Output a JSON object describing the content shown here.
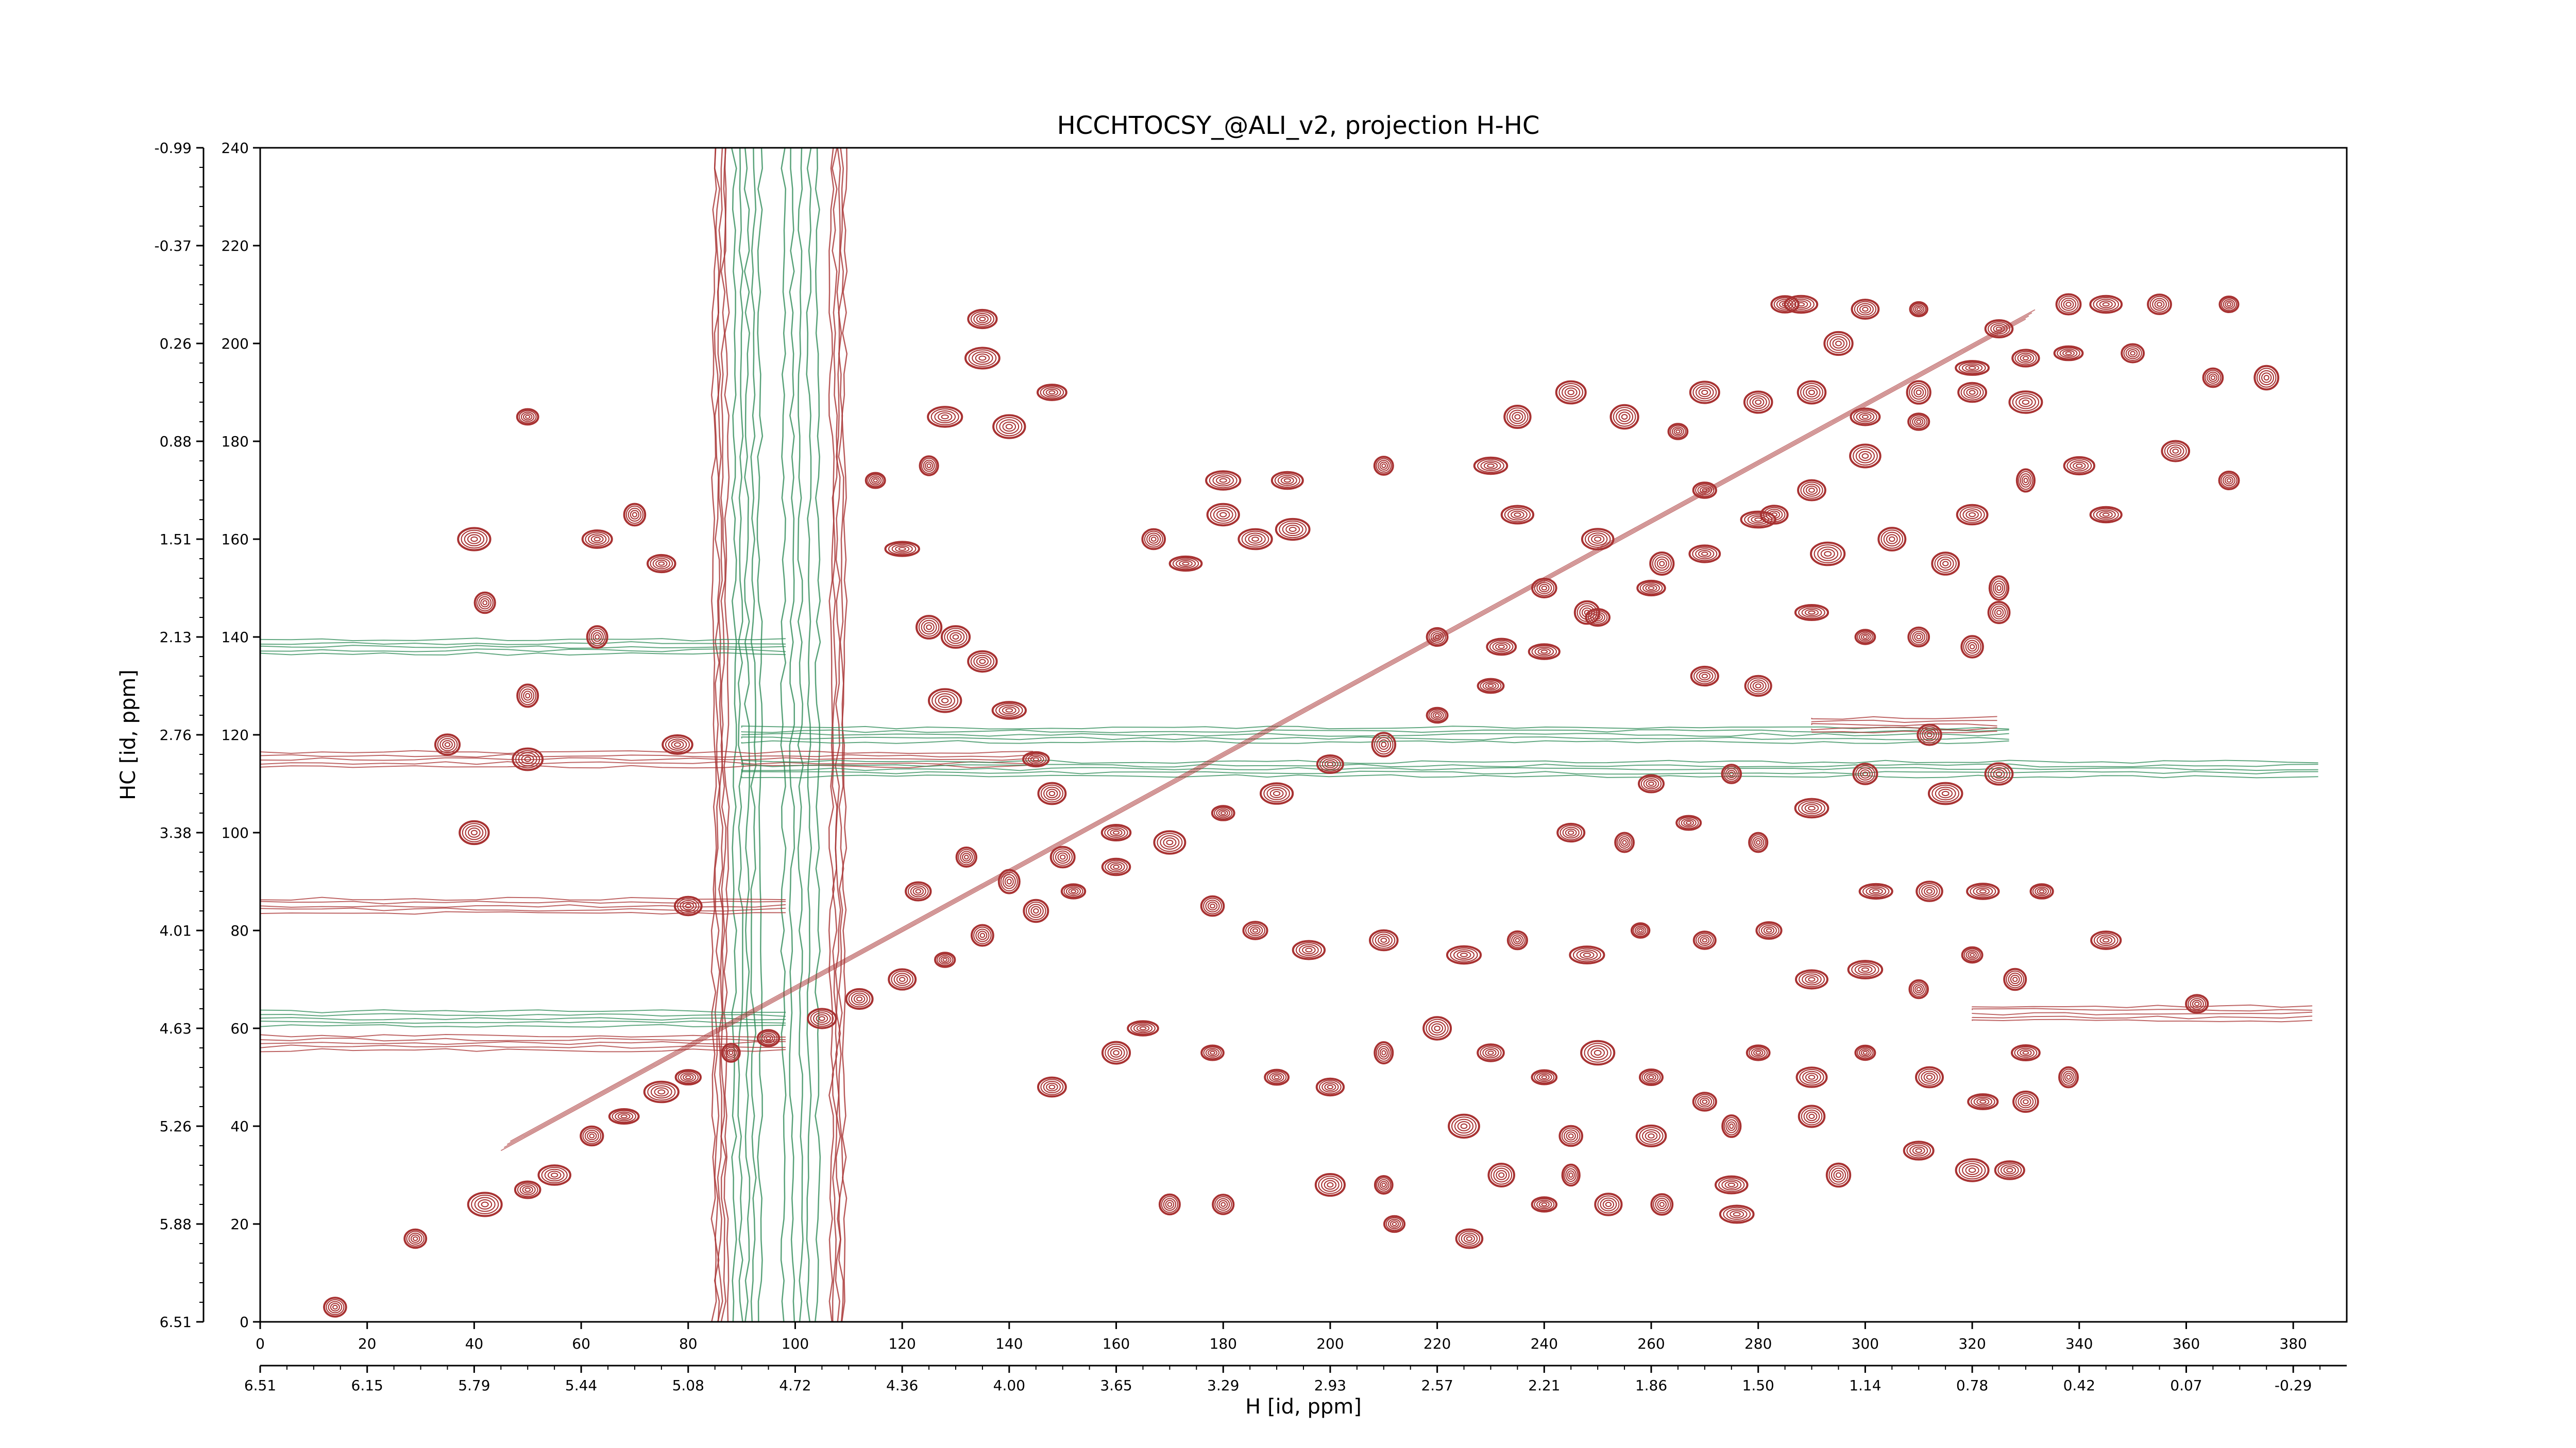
{
  "chart_data": {
    "type": "contour",
    "title": "HCCHTOCSY_@ALI_v2, projection H-HC",
    "xlabel": "H [id, ppm]",
    "ylabel": "HC [id, ppm]",
    "xlim": [
      0,
      390
    ],
    "ylim": [
      0,
      240
    ],
    "x_index_ticks": [
      "0",
      "20",
      "40",
      "60",
      "80",
      "100",
      "120",
      "140",
      "160",
      "180",
      "200",
      "220",
      "240",
      "260",
      "280",
      "300",
      "320",
      "340",
      "360",
      "380"
    ],
    "x_index_values": [
      0,
      20,
      40,
      60,
      80,
      100,
      120,
      140,
      160,
      180,
      200,
      220,
      240,
      260,
      280,
      300,
      320,
      340,
      360,
      380
    ],
    "x_ppm_ticks": [
      "6.51",
      "6.15",
      "5.79",
      "5.44",
      "5.08",
      "4.72",
      "4.36",
      "4.00",
      "3.65",
      "3.29",
      "2.93",
      "2.57",
      "2.21",
      "1.86",
      "1.50",
      "1.14",
      "0.78",
      "0.42",
      "0.07",
      "-0.29"
    ],
    "y_index_ticks": [
      "0",
      "20",
      "40",
      "60",
      "80",
      "100",
      "120",
      "140",
      "160",
      "180",
      "200",
      "220",
      "240"
    ],
    "y_index_values": [
      0,
      20,
      40,
      60,
      80,
      100,
      120,
      140,
      160,
      180,
      200,
      220,
      240
    ],
    "y_ppm_ticks": [
      "6.51",
      "5.88",
      "5.26",
      "4.63",
      "4.01",
      "3.38",
      "2.76",
      "2.13",
      "1.51",
      "0.88",
      "0.26",
      "-0.37",
      "-0.99"
    ],
    "series_colors": {
      "positive": "#a83232",
      "negative": "#2e8b57"
    },
    "grid": false,
    "diagonal": {
      "from": [
        45,
        35
      ],
      "to": [
        330,
        205
      ]
    },
    "vertical_streaks": [
      {
        "x": 91,
        "width": 6,
        "color": "negative"
      },
      {
        "x": 101,
        "width": 8,
        "color": "negative"
      },
      {
        "x": 86,
        "width": 3,
        "color": "positive"
      },
      {
        "x": 108,
        "width": 3,
        "color": "positive"
      }
    ],
    "horizontal_streaks": [
      {
        "y": 115,
        "x0": 0,
        "x1": 150,
        "color": "positive"
      },
      {
        "y": 113,
        "x0": 90,
        "x1": 390,
        "color": "negative"
      },
      {
        "y": 62,
        "x0": 0,
        "x1": 100,
        "color": "negative"
      },
      {
        "y": 57,
        "x0": 0,
        "x1": 100,
        "color": "positive"
      },
      {
        "y": 85,
        "x0": 0,
        "x1": 100,
        "color": "positive"
      },
      {
        "y": 138,
        "x0": 0,
        "x1": 100,
        "color": "negative"
      },
      {
        "y": 120,
        "x0": 90,
        "x1": 330,
        "color": "negative"
      },
      {
        "y": 122,
        "x0": 290,
        "x1": 330,
        "color": "positive"
      },
      {
        "y": 63,
        "x0": 320,
        "x1": 388,
        "color": "positive"
      }
    ],
    "peaks": [
      {
        "x": 14,
        "y": 3
      },
      {
        "x": 29,
        "y": 17
      },
      {
        "x": 42,
        "y": 24
      },
      {
        "x": 50,
        "y": 27
      },
      {
        "x": 55,
        "y": 30
      },
      {
        "x": 62,
        "y": 38
      },
      {
        "x": 68,
        "y": 42
      },
      {
        "x": 75,
        "y": 47
      },
      {
        "x": 80,
        "y": 50
      },
      {
        "x": 88,
        "y": 55
      },
      {
        "x": 95,
        "y": 58
      },
      {
        "x": 105,
        "y": 62
      },
      {
        "x": 112,
        "y": 66
      },
      {
        "x": 120,
        "y": 70
      },
      {
        "x": 128,
        "y": 74
      },
      {
        "x": 135,
        "y": 79
      },
      {
        "x": 145,
        "y": 84
      },
      {
        "x": 152,
        "y": 88
      },
      {
        "x": 160,
        "y": 93
      },
      {
        "x": 170,
        "y": 98
      },
      {
        "x": 180,
        "y": 104
      },
      {
        "x": 190,
        "y": 108
      },
      {
        "x": 200,
        "y": 114
      },
      {
        "x": 210,
        "y": 118
      },
      {
        "x": 220,
        "y": 124
      },
      {
        "x": 230,
        "y": 130
      },
      {
        "x": 240,
        "y": 137
      },
      {
        "x": 250,
        "y": 144
      },
      {
        "x": 260,
        "y": 150
      },
      {
        "x": 270,
        "y": 157
      },
      {
        "x": 280,
        "y": 164
      },
      {
        "x": 290,
        "y": 170
      },
      {
        "x": 300,
        "y": 177
      },
      {
        "x": 310,
        "y": 184
      },
      {
        "x": 320,
        "y": 190
      },
      {
        "x": 330,
        "y": 197
      },
      {
        "x": 50,
        "y": 185
      },
      {
        "x": 40,
        "y": 160
      },
      {
        "x": 42,
        "y": 147
      },
      {
        "x": 63,
        "y": 160
      },
      {
        "x": 70,
        "y": 165
      },
      {
        "x": 75,
        "y": 155
      },
      {
        "x": 63,
        "y": 140
      },
      {
        "x": 50,
        "y": 128
      },
      {
        "x": 35,
        "y": 118
      },
      {
        "x": 50,
        "y": 115
      },
      {
        "x": 40,
        "y": 100
      },
      {
        "x": 78,
        "y": 118
      },
      {
        "x": 80,
        "y": 85
      },
      {
        "x": 135,
        "y": 205
      },
      {
        "x": 135,
        "y": 197
      },
      {
        "x": 148,
        "y": 190
      },
      {
        "x": 140,
        "y": 183
      },
      {
        "x": 128,
        "y": 185
      },
      {
        "x": 125,
        "y": 175
      },
      {
        "x": 115,
        "y": 172
      },
      {
        "x": 120,
        "y": 158
      },
      {
        "x": 125,
        "y": 142
      },
      {
        "x": 130,
        "y": 140
      },
      {
        "x": 135,
        "y": 135
      },
      {
        "x": 128,
        "y": 127
      },
      {
        "x": 140,
        "y": 125
      },
      {
        "x": 145,
        "y": 115
      },
      {
        "x": 148,
        "y": 108
      },
      {
        "x": 123,
        "y": 88
      },
      {
        "x": 132,
        "y": 95
      },
      {
        "x": 140,
        "y": 90
      },
      {
        "x": 150,
        "y": 95
      },
      {
        "x": 160,
        "y": 100
      },
      {
        "x": 173,
        "y": 155
      },
      {
        "x": 180,
        "y": 165
      },
      {
        "x": 186,
        "y": 160
      },
      {
        "x": 193,
        "y": 162
      },
      {
        "x": 192,
        "y": 172
      },
      {
        "x": 180,
        "y": 172
      },
      {
        "x": 167,
        "y": 160
      },
      {
        "x": 210,
        "y": 175
      },
      {
        "x": 220,
        "y": 140
      },
      {
        "x": 232,
        "y": 138
      },
      {
        "x": 240,
        "y": 150
      },
      {
        "x": 248,
        "y": 145
      },
      {
        "x": 235,
        "y": 185
      },
      {
        "x": 245,
        "y": 190
      },
      {
        "x": 255,
        "y": 185
      },
      {
        "x": 265,
        "y": 182
      },
      {
        "x": 270,
        "y": 190
      },
      {
        "x": 280,
        "y": 188
      },
      {
        "x": 290,
        "y": 190
      },
      {
        "x": 300,
        "y": 185
      },
      {
        "x": 310,
        "y": 190
      },
      {
        "x": 320,
        "y": 195
      },
      {
        "x": 230,
        "y": 175
      },
      {
        "x": 235,
        "y": 165
      },
      {
        "x": 250,
        "y": 160
      },
      {
        "x": 262,
        "y": 155
      },
      {
        "x": 270,
        "y": 170
      },
      {
        "x": 283,
        "y": 165
      },
      {
        "x": 293,
        "y": 157
      },
      {
        "x": 305,
        "y": 160
      },
      {
        "x": 315,
        "y": 155
      },
      {
        "x": 325,
        "y": 150
      },
      {
        "x": 320,
        "y": 165
      },
      {
        "x": 330,
        "y": 172
      },
      {
        "x": 340,
        "y": 175
      },
      {
        "x": 345,
        "y": 165
      },
      {
        "x": 358,
        "y": 178
      },
      {
        "x": 368,
        "y": 172
      },
      {
        "x": 330,
        "y": 188
      },
      {
        "x": 285,
        "y": 208
      },
      {
        "x": 288,
        "y": 208
      },
      {
        "x": 295,
        "y": 200
      },
      {
        "x": 310,
        "y": 207
      },
      {
        "x": 325,
        "y": 203
      },
      {
        "x": 338,
        "y": 208
      },
      {
        "x": 345,
        "y": 208
      },
      {
        "x": 355,
        "y": 208
      },
      {
        "x": 368,
        "y": 208
      },
      {
        "x": 338,
        "y": 198
      },
      {
        "x": 350,
        "y": 198
      },
      {
        "x": 365,
        "y": 193
      },
      {
        "x": 375,
        "y": 193
      },
      {
        "x": 300,
        "y": 207
      },
      {
        "x": 310,
        "y": 140
      },
      {
        "x": 320,
        "y": 138
      },
      {
        "x": 325,
        "y": 145
      },
      {
        "x": 300,
        "y": 140
      },
      {
        "x": 290,
        "y": 145
      },
      {
        "x": 280,
        "y": 130
      },
      {
        "x": 270,
        "y": 132
      },
      {
        "x": 260,
        "y": 110
      },
      {
        "x": 275,
        "y": 112
      },
      {
        "x": 290,
        "y": 105
      },
      {
        "x": 300,
        "y": 112
      },
      {
        "x": 245,
        "y": 100
      },
      {
        "x": 255,
        "y": 98
      },
      {
        "x": 267,
        "y": 102
      },
      {
        "x": 280,
        "y": 98
      },
      {
        "x": 315,
        "y": 108
      },
      {
        "x": 325,
        "y": 112
      },
      {
        "x": 312,
        "y": 120
      },
      {
        "x": 178,
        "y": 85
      },
      {
        "x": 186,
        "y": 80
      },
      {
        "x": 196,
        "y": 76
      },
      {
        "x": 210,
        "y": 78
      },
      {
        "x": 225,
        "y": 75
      },
      {
        "x": 235,
        "y": 78
      },
      {
        "x": 248,
        "y": 75
      },
      {
        "x": 258,
        "y": 80
      },
      {
        "x": 270,
        "y": 78
      },
      {
        "x": 282,
        "y": 80
      },
      {
        "x": 290,
        "y": 70
      },
      {
        "x": 300,
        "y": 72
      },
      {
        "x": 310,
        "y": 68
      },
      {
        "x": 320,
        "y": 75
      },
      {
        "x": 328,
        "y": 70
      },
      {
        "x": 302,
        "y": 88
      },
      {
        "x": 312,
        "y": 88
      },
      {
        "x": 322,
        "y": 88
      },
      {
        "x": 333,
        "y": 88
      },
      {
        "x": 345,
        "y": 78
      },
      {
        "x": 362,
        "y": 65
      },
      {
        "x": 165,
        "y": 60
      },
      {
        "x": 178,
        "y": 55
      },
      {
        "x": 190,
        "y": 50
      },
      {
        "x": 200,
        "y": 48
      },
      {
        "x": 210,
        "y": 55
      },
      {
        "x": 220,
        "y": 60
      },
      {
        "x": 230,
        "y": 55
      },
      {
        "x": 240,
        "y": 50
      },
      {
        "x": 250,
        "y": 55
      },
      {
        "x": 260,
        "y": 50
      },
      {
        "x": 270,
        "y": 45
      },
      {
        "x": 280,
        "y": 55
      },
      {
        "x": 290,
        "y": 50
      },
      {
        "x": 300,
        "y": 55
      },
      {
        "x": 312,
        "y": 50
      },
      {
        "x": 322,
        "y": 45
      },
      {
        "x": 330,
        "y": 55
      },
      {
        "x": 338,
        "y": 50
      },
      {
        "x": 148,
        "y": 48
      },
      {
        "x": 160,
        "y": 55
      },
      {
        "x": 225,
        "y": 40
      },
      {
        "x": 245,
        "y": 38
      },
      {
        "x": 260,
        "y": 38
      },
      {
        "x": 275,
        "y": 40
      },
      {
        "x": 290,
        "y": 42
      },
      {
        "x": 310,
        "y": 35
      },
      {
        "x": 330,
        "y": 45
      },
      {
        "x": 170,
        "y": 24
      },
      {
        "x": 180,
        "y": 24
      },
      {
        "x": 200,
        "y": 28
      },
      {
        "x": 212,
        "y": 20
      },
      {
        "x": 226,
        "y": 17
      },
      {
        "x": 240,
        "y": 24
      },
      {
        "x": 252,
        "y": 24
      },
      {
        "x": 262,
        "y": 24
      },
      {
        "x": 275,
        "y": 28
      },
      {
        "x": 276,
        "y": 22
      },
      {
        "x": 295,
        "y": 30
      },
      {
        "x": 320,
        "y": 31
      },
      {
        "x": 327,
        "y": 31
      },
      {
        "x": 210,
        "y": 28
      },
      {
        "x": 232,
        "y": 30
      },
      {
        "x": 245,
        "y": 30
      }
    ]
  }
}
